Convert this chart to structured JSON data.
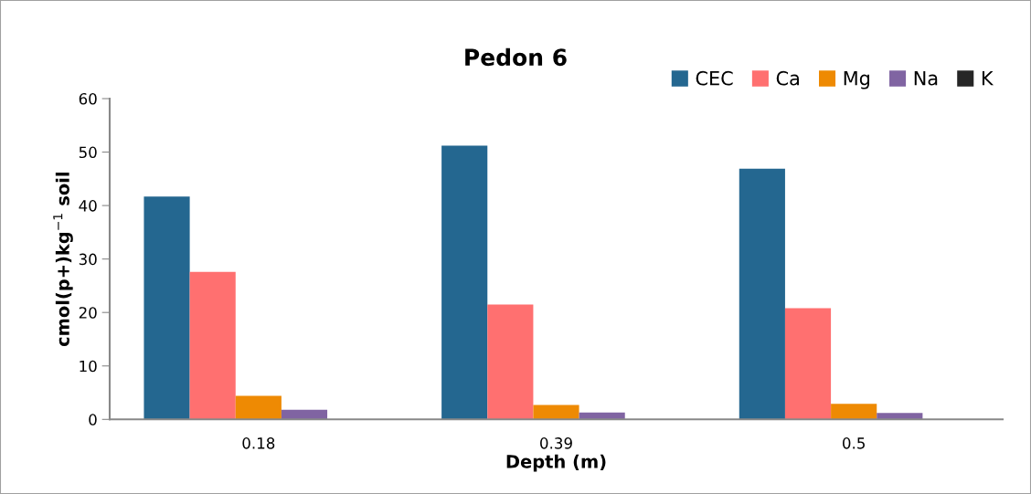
{
  "chart_data": {
    "type": "bar",
    "title": "Pedon 6",
    "xlabel": "Depth (m)",
    "ylabel": "cmol(p+)kg$^{−1}$ soil",
    "categories": [
      "0.18",
      "0.39",
      "0.5"
    ],
    "series": [
      {
        "name": "CEC",
        "color": "#246790",
        "values": [
          41.7,
          51.2,
          46.9
        ]
      },
      {
        "name": "Ca",
        "color": "#ff7070",
        "values": [
          27.6,
          21.5,
          20.8
        ]
      },
      {
        "name": "Mg",
        "color": "#ee8a03",
        "values": [
          4.4,
          2.7,
          2.9
        ]
      },
      {
        "name": "Na",
        "color": "#8064a2",
        "values": [
          1.8,
          1.3,
          1.2
        ]
      },
      {
        "name": "K",
        "color": "#262626",
        "values": [
          0,
          0,
          0
        ]
      }
    ],
    "ylim": [
      0,
      60
    ],
    "yticks": [
      0,
      10,
      20,
      30,
      40,
      50,
      60
    ],
    "grid": false,
    "legend": "top right"
  }
}
